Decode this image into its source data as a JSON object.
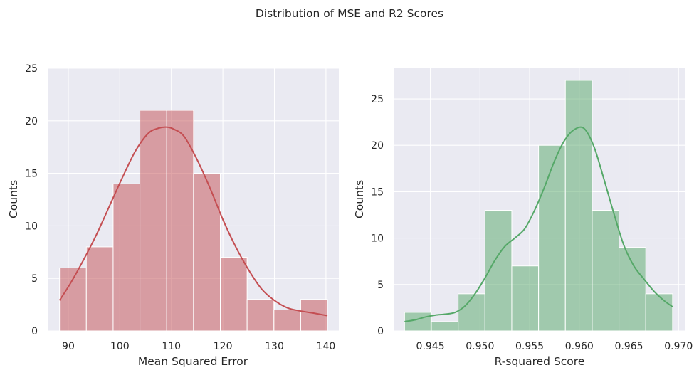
{
  "figure": {
    "suptitle": "Distribution of MSE and R2 Scores"
  },
  "chart_data": [
    {
      "type": "bar",
      "subtype": "histogram",
      "xlabel": "Mean Squared Error",
      "ylabel": "Counts",
      "xlim": [
        86.0,
        142.5
      ],
      "ylim": [
        0,
        25
      ],
      "xticks": [
        90,
        100,
        110,
        120,
        130,
        140
      ],
      "yticks": [
        0,
        5,
        10,
        15,
        20,
        25
      ],
      "grid": true,
      "color": "#c44e52",
      "bin_edges": [
        88.3,
        93.5,
        98.7,
        103.9,
        109.1,
        114.3,
        119.5,
        124.7,
        129.9,
        135.1,
        140.3
      ],
      "values": [
        6,
        8,
        14,
        21,
        21,
        15,
        7,
        3,
        2,
        3
      ],
      "kde": {
        "x": [
          88.3,
          90.5,
          93,
          95.5,
          98,
          100.5,
          103,
          105.5,
          107.5,
          109.1,
          110.5,
          112.5,
          115,
          117.5,
          120,
          122.5,
          125,
          127.5,
          130,
          132.5,
          135,
          137.5,
          140.3
        ],
        "y": [
          2.9,
          4.6,
          6.8,
          9.2,
          11.9,
          14.6,
          17.1,
          18.8,
          19.3,
          19.4,
          19.2,
          18.5,
          16.3,
          13.6,
          10.6,
          8.0,
          5.8,
          4.0,
          2.9,
          2.2,
          1.9,
          1.7,
          1.45
        ]
      }
    },
    {
      "type": "bar",
      "subtype": "histogram",
      "xlabel": "R-squared Score",
      "ylabel": "Counts",
      "xlim": [
        0.9413,
        0.9707
      ],
      "ylim": [
        0,
        28.3
      ],
      "xticks": [
        0.945,
        0.95,
        0.955,
        0.96,
        0.965,
        0.97
      ],
      "ytick_labels": [
        "0",
        "5",
        "10",
        "15",
        "20",
        "25"
      ],
      "yticks": [
        0,
        5,
        10,
        15,
        20,
        25
      ],
      "xtick_labels": [
        "0.945",
        "0.950",
        "0.955",
        "0.960",
        "0.965",
        "0.970"
      ],
      "grid": true,
      "color": "#55a868",
      "bin_edges": [
        0.9424,
        0.9451,
        0.9478,
        0.9505,
        0.9532,
        0.9559,
        0.9586,
        0.9613,
        0.964,
        0.9667,
        0.9694
      ],
      "values": [
        2,
        1,
        4,
        13,
        7,
        20,
        27,
        13,
        9,
        4
      ],
      "kde": {
        "x": [
          0.9424,
          0.9435,
          0.9445,
          0.9455,
          0.9465,
          0.9475,
          0.9485,
          0.9495,
          0.9505,
          0.9515,
          0.9525,
          0.9535,
          0.9545,
          0.9555,
          0.9565,
          0.9575,
          0.9585,
          0.9595,
          0.9605,
          0.9615,
          0.9625,
          0.9635,
          0.9645,
          0.9655,
          0.9665,
          0.9675,
          0.9685,
          0.9694
        ],
        "y": [
          1.0,
          1.2,
          1.5,
          1.7,
          1.8,
          2.0,
          2.7,
          4.0,
          5.7,
          7.6,
          9.1,
          10.0,
          11.0,
          13.0,
          15.5,
          18.3,
          20.5,
          21.7,
          21.8,
          19.8,
          16.3,
          12.6,
          9.2,
          7.0,
          5.6,
          4.3,
          3.3,
          2.6
        ]
      }
    }
  ]
}
